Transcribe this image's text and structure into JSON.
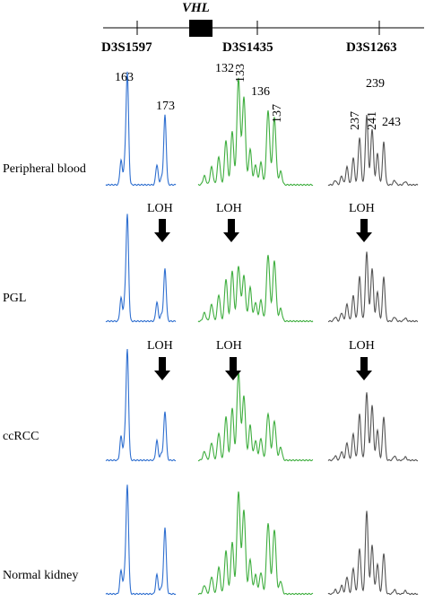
{
  "map": {
    "gene": "VHL",
    "markers": [
      "D3S1597",
      "D3S1435",
      "D3S1263"
    ]
  },
  "rows": [
    {
      "label": "Peripheral blood",
      "loh": [
        "",
        "",
        ""
      ]
    },
    {
      "label": "PGL",
      "loh": [
        "LOH",
        "LOH",
        "LOH"
      ]
    },
    {
      "label": "ccRCC",
      "loh": [
        "LOH",
        "LOH",
        "LOH"
      ]
    },
    {
      "label": "Normal kidney",
      "loh": [
        "",
        "",
        ""
      ]
    }
  ],
  "peak_labels": {
    "D3S1597": [
      "163",
      "173"
    ],
    "D3S1435": [
      "132",
      "133",
      "136",
      "137"
    ],
    "D3S1263": [
      "237",
      "239",
      "241",
      "243"
    ]
  },
  "colors": {
    "D3S1597": "#2f6fd0",
    "D3S1435": "#3fae3f",
    "D3S1263": "#555555"
  }
}
